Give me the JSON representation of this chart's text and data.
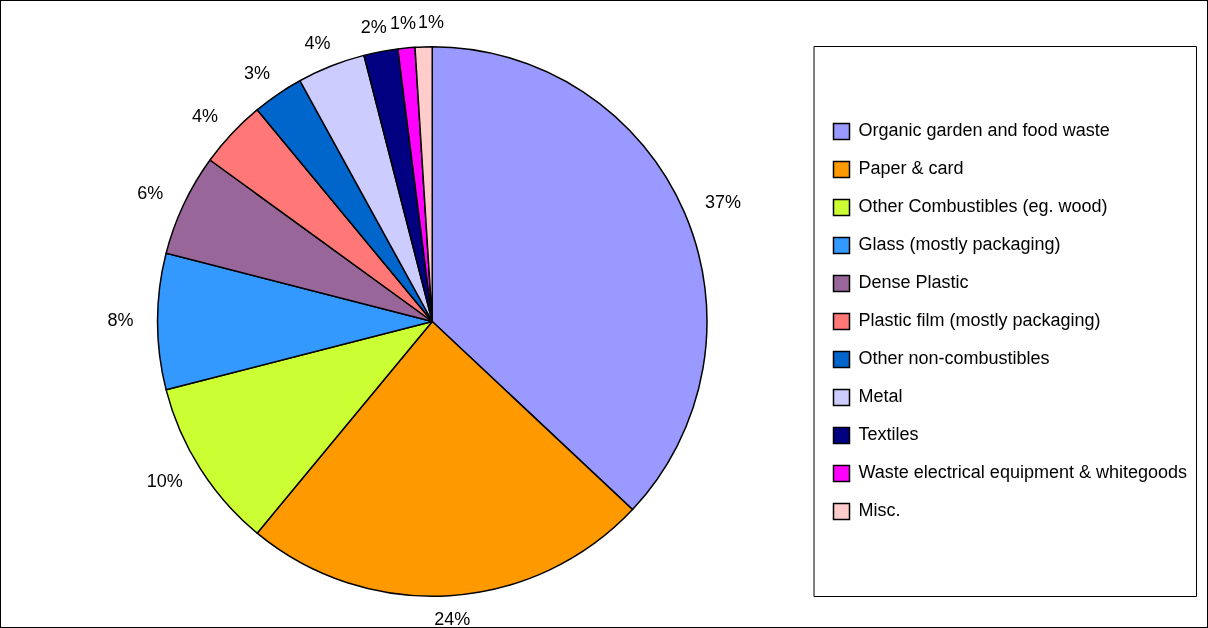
{
  "chart_data": {
    "type": "pie",
    "categories": [
      "Organic garden and food waste",
      "Paper & card",
      "Other Combustibles (eg. wood)",
      "Glass (mostly packaging)",
      "Dense Plastic",
      "Plastic film (mostly packaging)",
      "Other non-combustibles",
      "Metal",
      "Textiles",
      "Waste electrical equipment & whitegoods",
      "Misc."
    ],
    "values": [
      37,
      24,
      10,
      8,
      6,
      4,
      3,
      4,
      2,
      1,
      1
    ],
    "value_labels": [
      "37%",
      "24%",
      "10%",
      "8%",
      "6%",
      "4%",
      "3%",
      "4%",
      "2%",
      "1%",
      "1%"
    ],
    "colors": [
      "#9999ff",
      "#ff9900",
      "#ccff33",
      "#3399ff",
      "#996699",
      "#ff7777",
      "#0066cc",
      "#ccccff",
      "#000080",
      "#ff00ff",
      "#ffcccc"
    ],
    "legend": "right"
  }
}
